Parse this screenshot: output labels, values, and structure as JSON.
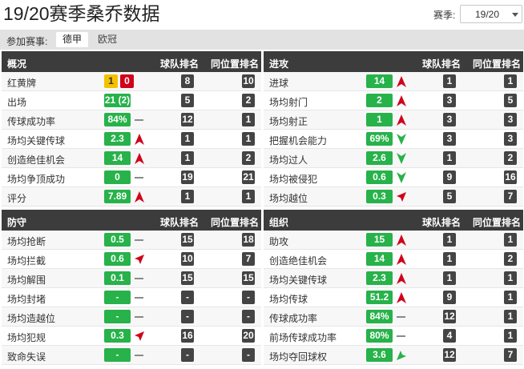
{
  "header": {
    "title": "19/20赛季桑乔数据",
    "season_label": "赛季:",
    "season_value": "19/20"
  },
  "competition": {
    "label": "参加赛事:",
    "tabs": [
      {
        "label": "德甲",
        "active": true
      },
      {
        "label": "欧冠",
        "active": false
      }
    ]
  },
  "colors": {
    "pill_green": "#27b24a",
    "card_yellow": "#f2c200",
    "card_red": "#d0021b",
    "header_dark": "#3c3c3c",
    "rank_dark": "#444444"
  },
  "sections": {
    "overview": {
      "title": "概况",
      "team_rank_header": "球队排名",
      "pos_rank_header": "同位置排名",
      "rows": [
        {
          "label": "红黄牌",
          "yellow": "1",
          "red": "0",
          "team_rank": "8",
          "pos_rank": "10"
        },
        {
          "label": "出场",
          "value": "21 (2)",
          "trend": "none",
          "team_rank": "5",
          "pos_rank": "2"
        },
        {
          "label": "传球成功率",
          "value": "84%",
          "trend": "flat",
          "team_rank": "12",
          "pos_rank": "1"
        },
        {
          "label": "场均关键传球",
          "value": "2.3",
          "trend": "up",
          "team_rank": "1",
          "pos_rank": "1"
        },
        {
          "label": "创造绝佳机会",
          "value": "14",
          "trend": "up",
          "team_rank": "1",
          "pos_rank": "2"
        },
        {
          "label": "场均争顶成功",
          "value": "0",
          "trend": "flat",
          "team_rank": "19",
          "pos_rank": "21"
        },
        {
          "label": "评分",
          "value": "7.89",
          "trend": "up",
          "team_rank": "1",
          "pos_rank": "1"
        }
      ]
    },
    "attack": {
      "title": "进攻",
      "team_rank_header": "球队排名",
      "pos_rank_header": "同位置排名",
      "rows": [
        {
          "label": "进球",
          "value": "14",
          "trend": "up",
          "team_rank": "1",
          "pos_rank": "1"
        },
        {
          "label": "场均射门",
          "value": "2",
          "trend": "up",
          "team_rank": "3",
          "pos_rank": "5"
        },
        {
          "label": "场均射正",
          "value": "1",
          "trend": "up",
          "team_rank": "3",
          "pos_rank": "3"
        },
        {
          "label": "把握机会能力",
          "value": "69%",
          "trend": "down",
          "team_rank": "3",
          "pos_rank": "3"
        },
        {
          "label": "场均过人",
          "value": "2.6",
          "trend": "down",
          "team_rank": "1",
          "pos_rank": "2"
        },
        {
          "label": "场均被侵犯",
          "value": "0.6",
          "trend": "down",
          "team_rank": "9",
          "pos_rank": "16"
        },
        {
          "label": "场均越位",
          "value": "0.3",
          "trend": "up-right",
          "team_rank": "5",
          "pos_rank": "7"
        }
      ]
    },
    "defense": {
      "title": "防守",
      "team_rank_header": "球队排名",
      "pos_rank_header": "同位置排名",
      "rows": [
        {
          "label": "场均抢断",
          "value": "0.5",
          "trend": "flat",
          "team_rank": "15",
          "pos_rank": "18"
        },
        {
          "label": "场均拦截",
          "value": "0.6",
          "trend": "up-right",
          "team_rank": "10",
          "pos_rank": "7"
        },
        {
          "label": "场均解围",
          "value": "0.1",
          "trend": "flat",
          "team_rank": "15",
          "pos_rank": "15"
        },
        {
          "label": "场均封堵",
          "value": "-",
          "trend": "flat",
          "team_rank": "-",
          "pos_rank": "-"
        },
        {
          "label": "场均造越位",
          "value": "-",
          "trend": "flat",
          "team_rank": "-",
          "pos_rank": "-"
        },
        {
          "label": "场均犯规",
          "value": "0.3",
          "trend": "up-right",
          "team_rank": "16",
          "pos_rank": "20"
        },
        {
          "label": "致命失误",
          "value": "-",
          "trend": "flat",
          "team_rank": "-",
          "pos_rank": "-"
        }
      ]
    },
    "organization": {
      "title": "组织",
      "team_rank_header": "球队排名",
      "pos_rank_header": "同位置排名",
      "rows": [
        {
          "label": "助攻",
          "value": "15",
          "trend": "up",
          "team_rank": "1",
          "pos_rank": "1"
        },
        {
          "label": "创造绝佳机会",
          "value": "14",
          "trend": "up",
          "team_rank": "1",
          "pos_rank": "2"
        },
        {
          "label": "场均关键传球",
          "value": "2.3",
          "trend": "up",
          "team_rank": "1",
          "pos_rank": "1"
        },
        {
          "label": "场均传球",
          "value": "51.2",
          "trend": "up",
          "team_rank": "9",
          "pos_rank": "1"
        },
        {
          "label": "传球成功率",
          "value": "84%",
          "trend": "flat",
          "team_rank": "12",
          "pos_rank": "1"
        },
        {
          "label": "前场传球成功率",
          "value": "80%",
          "trend": "flat",
          "team_rank": "4",
          "pos_rank": "1"
        },
        {
          "label": "场均夺回球权",
          "value": "3.6",
          "trend": "down-left",
          "team_rank": "12",
          "pos_rank": "7"
        }
      ]
    }
  }
}
